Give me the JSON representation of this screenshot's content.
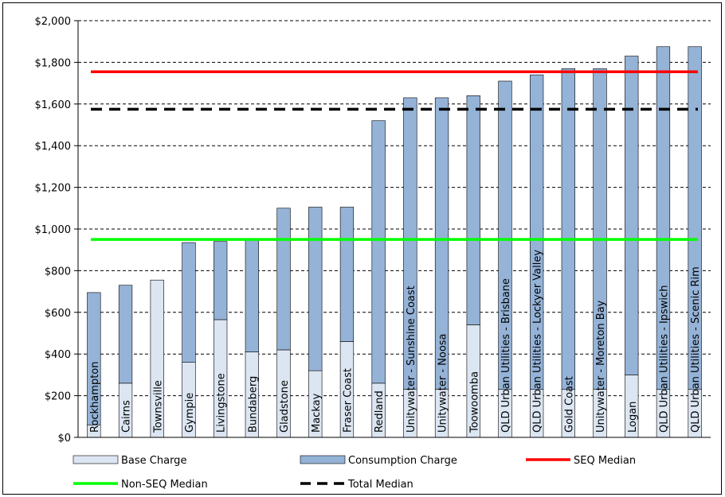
{
  "chart_data": {
    "type": "bar",
    "stacked": true,
    "categories": [
      "Rockhampton",
      "Cairns",
      "Townsville",
      "Gympie",
      "Livingstone",
      "Bundaberg",
      "Gladstone",
      "Mackay",
      "Fraser Coast",
      "Redland",
      "Unitywater - Sunshine Coast",
      "Unitywater - Noosa",
      "Toowoomba",
      "QLD Urban Utilities - Brisbane",
      "QLD Urban Utilities - Lockyer Valley",
      "Gold Coast",
      "Unitywater - Moreton Bay",
      "Logan",
      "QLD Urban Utilities - Ipswich",
      "QLD Urban Utilities - Scenic Rim"
    ],
    "series": [
      {
        "name": "Base Charge",
        "color": "#dce6f2",
        "values": [
          60,
          260,
          755,
          360,
          565,
          410,
          420,
          320,
          460,
          260,
          230,
          230,
          540,
          230,
          230,
          230,
          230,
          300,
          230,
          230
        ]
      },
      {
        "name": "Consumption Charge",
        "color": "#95b3d7",
        "values": [
          635,
          470,
          0,
          575,
          375,
          545,
          680,
          785,
          645,
          1260,
          1400,
          1400,
          1100,
          1480,
          1510,
          1540,
          1540,
          1530,
          1645,
          1645
        ]
      }
    ],
    "reference_lines": [
      {
        "name": "SEQ Median",
        "value": 1755,
        "color": "#ff0000",
        "style": "solid"
      },
      {
        "name": "Non-SEQ Median",
        "value": 950,
        "color": "#00ff00",
        "style": "solid"
      },
      {
        "name": "Total Median",
        "value": 1575,
        "color": "#000000",
        "style": "dashed"
      }
    ],
    "yticks": [
      "$0",
      "$200",
      "$400",
      "$600",
      "$800",
      "$1,000",
      "$1,200",
      "$1,400",
      "$1,600",
      "$1,800",
      "$2,000"
    ],
    "ylim": [
      0,
      2000
    ],
    "ystep": 200,
    "grid": true,
    "legend_placement": "bottom"
  }
}
